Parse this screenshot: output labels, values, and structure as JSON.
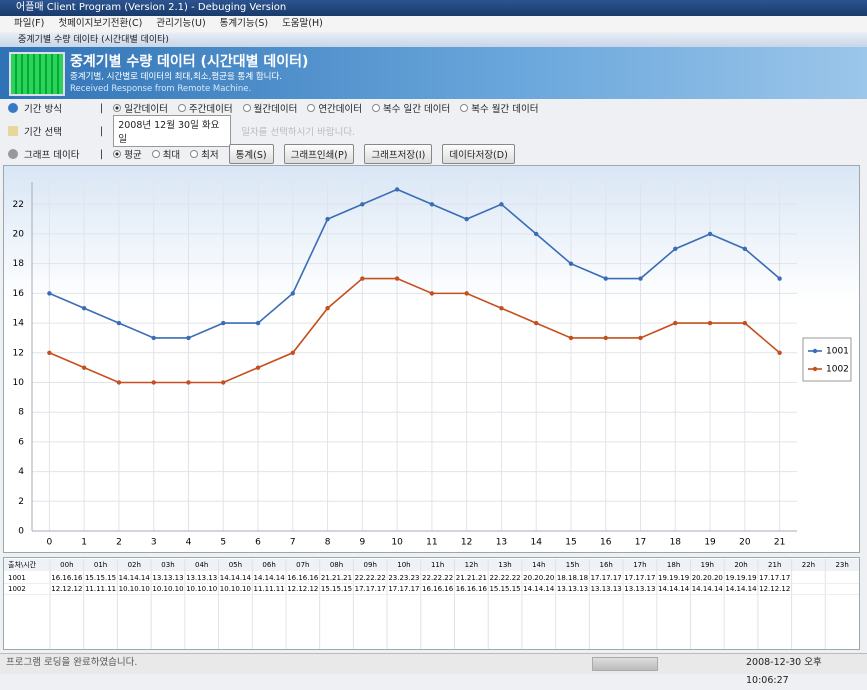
{
  "window": {
    "title": "어플매 Client Program (Version 2.1) - Debuging Version"
  },
  "menu": [
    "파일(F)",
    "첫페이지보기전환(C)",
    "관리기능(U)",
    "통계기능(S)",
    "도움말(H)"
  ],
  "subwindow": {
    "title": "중계기별 수량 데이타 (시간대별 데이타)"
  },
  "header": {
    "title": "중계기별 수량 데이터 (시간대별 데이터)",
    "subtitle": "중계기별, 시간별로 데이터의 최대,최소,평균을 통계 합니다.",
    "status": "Received Response from Remote Machine."
  },
  "period_type": {
    "label": "기간 방식",
    "options": [
      "일간데이터",
      "주간데이터",
      "월간데이터",
      "연간데이터",
      "복수 일간 데이터",
      "복수 월간 데이터"
    ]
  },
  "period_select": {
    "label": "기간 선택",
    "date": "2008년 12월 30일 화요일",
    "hint": "일자를 선택하시기 바랍니다."
  },
  "graph_data": {
    "label": "그래프 데이타",
    "options": [
      "평균",
      "최대",
      "최저"
    ],
    "buttons": [
      "통계(S)",
      "그래프인쇄(P)",
      "그래프저장(I)",
      "데이타저장(D)"
    ]
  },
  "chart_data": {
    "type": "line",
    "x": [
      0,
      1,
      2,
      3,
      4,
      5,
      6,
      7,
      8,
      9,
      10,
      11,
      12,
      13,
      14,
      15,
      16,
      17,
      18,
      19,
      20,
      21
    ],
    "xlim": [
      -0.5,
      21.5
    ],
    "xticks": [
      0,
      1,
      2,
      3,
      4,
      5,
      6,
      7,
      8,
      9,
      10,
      11,
      12,
      13,
      14,
      15,
      16,
      17,
      18,
      19,
      20,
      21
    ],
    "ylim": [
      0,
      23.5
    ],
    "yticks": [
      0,
      2,
      4,
      6,
      8,
      10,
      12,
      14,
      16,
      18,
      20,
      22
    ],
    "grid": true,
    "legend": "right",
    "series": [
      {
        "name": "1001",
        "color": "#3a6db5",
        "values": [
          16,
          15,
          14,
          13,
          13,
          14,
          14,
          16,
          21,
          22,
          23,
          22,
          21,
          22,
          20,
          18,
          17,
          17,
          19,
          20,
          19,
          17
        ]
      },
      {
        "name": "1002",
        "color": "#c4501f",
        "values": [
          12,
          11,
          10,
          10,
          10,
          10,
          11,
          12,
          15,
          17,
          17,
          16,
          16,
          15,
          14,
          13,
          13,
          13,
          14,
          14,
          14,
          12
        ]
      }
    ]
  },
  "table": {
    "corner": "출처\\시간",
    "columns": [
      "00h",
      "01h",
      "02h",
      "03h",
      "04h",
      "05h",
      "06h",
      "07h",
      "08h",
      "09h",
      "10h",
      "11h",
      "12h",
      "13h",
      "14h",
      "15h",
      "16h",
      "17h",
      "18h",
      "19h",
      "20h",
      "21h",
      "22h",
      "23h"
    ],
    "rows": [
      [
        "1001",
        "16.16.16",
        "15.15.15",
        "14.14.14",
        "13.13.13",
        "13.13.13",
        "14.14.14",
        "14.14.14",
        "16.16.16",
        "21.21.21",
        "22.22.22",
        "23.23.23",
        "22.22.22",
        "21.21.21",
        "22.22.22",
        "20.20.20",
        "18.18.18",
        "17.17.17",
        "17.17.17",
        "19.19.19",
        "20.20.20",
        "19.19.19",
        "17.17.17"
      ],
      [
        "1002",
        "12.12.12",
        "11.11.11",
        "10.10.10",
        "10.10.10",
        "10.10.10",
        "10.10.10",
        "11.11.11",
        "12.12.12",
        "15.15.15",
        "17.17.17",
        "17.17.17",
        "16.16.16",
        "16.16.16",
        "15.15.15",
        "14.14.14",
        "13.13.13",
        "13.13.13",
        "13.13.13",
        "14.14.14",
        "14.14.14",
        "14.14.14",
        "12.12.12"
      ]
    ]
  },
  "statusbar": {
    "message": "프로그램 로딩을 완료하였습니다.",
    "datetime": "2008-12-30 오후 10:06:27"
  }
}
